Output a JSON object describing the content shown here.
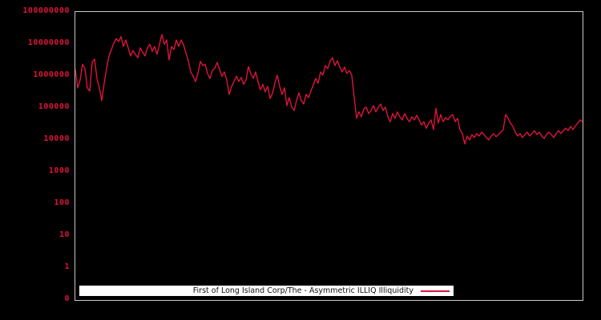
{
  "figure": {
    "background": "#000000",
    "plot_border_color": "#c8c8c8",
    "accent_red": "#dc143c"
  },
  "legend": {
    "label": "First of Long Island Corp/The - Asymmetric ILLIQ Illiquidity",
    "sample_color": "#dc143c",
    "position": "lower center"
  },
  "chart_data": {
    "type": "line",
    "title": "",
    "xlabel": "",
    "ylabel": "",
    "y_scale": "symlog",
    "ylim": [
      0,
      100000000
    ],
    "grid": false,
    "x_tick_labels": [],
    "y_tick_labels": [
      "100000000",
      "10000000",
      "1000000",
      "100000",
      "10000",
      "1000",
      "100",
      "10",
      "1",
      "0"
    ],
    "y_tick_label_color": "#dc143c",
    "legend_entries": [
      "First of Long Island Corp/The - Asymmetric ILLIQ Illiquidity"
    ],
    "series": [
      {
        "name": "First of Long Island Corp/The - Asymmetric ILLIQ Illiquidity",
        "color": "#dc143c",
        "values": [
          1500000,
          400000,
          710000,
          2200000,
          1600000,
          400000,
          320000,
          2500000,
          3200000,
          790000,
          400000,
          160000,
          560000,
          1600000,
          4000000,
          6300000,
          10000000,
          14000000,
          11200000,
          16000000,
          7900000,
          12600000,
          7100000,
          4000000,
          5900000,
          4500000,
          3500000,
          7100000,
          5200000,
          4000000,
          7100000,
          9300000,
          5600000,
          7900000,
          4500000,
          9300000,
          18600000,
          9300000,
          12600000,
          3000000,
          7900000,
          6300000,
          12600000,
          7900000,
          12600000,
          8900000,
          5000000,
          2800000,
          1260000,
          930000,
          630000,
          1120000,
          2700000,
          2000000,
          2200000,
          1120000,
          790000,
          1400000,
          1660000,
          2500000,
          1500000,
          930000,
          1260000,
          710000,
          250000,
          450000,
          630000,
          930000,
          630000,
          850000,
          520000,
          710000,
          1860000,
          1120000,
          790000,
          1260000,
          630000,
          350000,
          520000,
          300000,
          450000,
          186000,
          270000,
          560000,
          1000000,
          450000,
          250000,
          400000,
          112000,
          200000,
          100000,
          79000,
          160000,
          280000,
          160000,
          126000,
          250000,
          200000,
          320000,
          500000,
          790000,
          560000,
          1260000,
          1000000,
          2000000,
          1600000,
          2800000,
          3500000,
          2000000,
          2800000,
          1800000,
          1260000,
          1800000,
          1120000,
          1400000,
          1000000,
          200000,
          45000,
          71000,
          50000,
          89000,
          100000,
          63000,
          79000,
          112000,
          71000,
          100000,
          126000,
          79000,
          100000,
          50000,
          35000,
          63000,
          45000,
          71000,
          50000,
          40000,
          63000,
          45000,
          35000,
          50000,
          40000,
          56000,
          40000,
          28000,
          35000,
          22000,
          32000,
          40000,
          20000,
          93000,
          32000,
          59000,
          35000,
          48000,
          40000,
          52000,
          59000,
          35000,
          45000,
          20000,
          15000,
          7100,
          12600,
          9500,
          14000,
          11200,
          15000,
          12600,
          16600,
          14000,
          11200,
          9500,
          12600,
          15000,
          12000,
          14000,
          16600,
          20000,
          59000,
          45000,
          32000,
          25000,
          16600,
          12600,
          15000,
          11200,
          14000,
          16600,
          12600,
          15000,
          18600,
          14000,
          16600,
          12600,
          10500,
          14000,
          16600,
          14000,
          11200,
          15000,
          18600,
          15000,
          18600,
          22000,
          18600,
          25000,
          20000,
          26000,
          32000,
          40000,
          35000
        ]
      }
    ]
  }
}
